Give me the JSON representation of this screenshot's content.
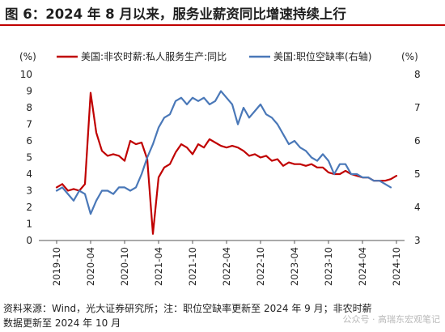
{
  "title": "图 6：2024 年 8 月以来，服务业薪资同比增速持续上行",
  "source_line1": "资料来源：Wind，光大证券研究所；注：职位空缺率更新至 2024 年 9 月；非农时薪",
  "source_line2": "数据更新至 2024 年 10 月",
  "watermark": "公众号 · 高瑞东宏观笔记",
  "colors": {
    "series1": "#c00000",
    "series2": "#4a78b8",
    "title_rule": "#c00000"
  },
  "chart_data": {
    "type": "line",
    "left_unit": "(%)",
    "right_unit": "(%)",
    "left_axis": {
      "min": 0,
      "max": 10,
      "ticks": [
        "0",
        "1",
        "2",
        "3",
        "4",
        "5",
        "6",
        "7",
        "8",
        "9",
        "10"
      ]
    },
    "right_axis": {
      "min": 3,
      "max": 8,
      "ticks": [
        "3",
        "4",
        "5",
        "6",
        "7",
        "8"
      ]
    },
    "x_tick_labels": [
      "2019-10",
      "2020-04",
      "2020-10",
      "2021-04",
      "2021-10",
      "2022-04",
      "2022-10",
      "2023-04",
      "2023-10",
      "2024-04",
      "2024-10"
    ],
    "grid": false,
    "legend_position": "top",
    "series": [
      {
        "name": "美国:非农时薪:私人服务生产:同比",
        "axis": "left",
        "x": [
          "2019-10",
          "2019-11",
          "2019-12",
          "2020-01",
          "2020-02",
          "2020-03",
          "2020-04",
          "2020-05",
          "2020-06",
          "2020-07",
          "2020-08",
          "2020-09",
          "2020-10",
          "2020-11",
          "2020-12",
          "2021-01",
          "2021-02",
          "2021-03",
          "2021-04",
          "2021-05",
          "2021-06",
          "2021-07",
          "2021-08",
          "2021-09",
          "2021-10",
          "2021-11",
          "2021-12",
          "2022-01",
          "2022-02",
          "2022-03",
          "2022-04",
          "2022-05",
          "2022-06",
          "2022-07",
          "2022-08",
          "2022-09",
          "2022-10",
          "2022-11",
          "2022-12",
          "2023-01",
          "2023-02",
          "2023-03",
          "2023-04",
          "2023-05",
          "2023-06",
          "2023-07",
          "2023-08",
          "2023-09",
          "2023-10",
          "2023-11",
          "2023-12",
          "2024-01",
          "2024-02",
          "2024-03",
          "2024-04",
          "2024-05",
          "2024-06",
          "2024-07",
          "2024-08",
          "2024-09",
          "2024-10"
        ],
        "values": [
          3.2,
          3.4,
          3.0,
          3.1,
          3.0,
          3.4,
          8.9,
          6.5,
          5.4,
          5.1,
          5.2,
          5.1,
          4.8,
          6.0,
          5.8,
          5.9,
          4.9,
          0.4,
          3.8,
          4.4,
          4.6,
          5.3,
          5.8,
          5.6,
          5.2,
          5.8,
          5.6,
          6.1,
          5.9,
          5.7,
          5.6,
          5.7,
          5.6,
          5.4,
          5.1,
          5.2,
          5.0,
          5.1,
          4.8,
          4.9,
          4.5,
          4.7,
          4.6,
          4.6,
          4.5,
          4.6,
          4.4,
          4.4,
          4.1,
          4.0,
          4.0,
          4.2,
          4.0,
          3.9,
          3.8,
          3.8,
          3.6,
          3.6,
          3.6,
          3.7,
          3.9
        ]
      },
      {
        "name": "美国:职位空缺率(右轴)",
        "axis": "right",
        "x": [
          "2019-10",
          "2019-11",
          "2019-12",
          "2020-01",
          "2020-02",
          "2020-03",
          "2020-04",
          "2020-05",
          "2020-06",
          "2020-07",
          "2020-08",
          "2020-09",
          "2020-10",
          "2020-11",
          "2020-12",
          "2021-01",
          "2021-02",
          "2021-03",
          "2021-04",
          "2021-05",
          "2021-06",
          "2021-07",
          "2021-08",
          "2021-09",
          "2021-10",
          "2021-11",
          "2021-12",
          "2022-01",
          "2022-02",
          "2022-03",
          "2022-04",
          "2022-05",
          "2022-06",
          "2022-07",
          "2022-08",
          "2022-09",
          "2022-10",
          "2022-11",
          "2022-12",
          "2023-01",
          "2023-02",
          "2023-03",
          "2023-04",
          "2023-05",
          "2023-06",
          "2023-07",
          "2023-08",
          "2023-09",
          "2023-10",
          "2023-11",
          "2023-12",
          "2024-01",
          "2024-02",
          "2024-03",
          "2024-04",
          "2024-05",
          "2024-06",
          "2024-07",
          "2024-08",
          "2024-09"
        ],
        "values": [
          4.5,
          4.6,
          4.4,
          4.2,
          4.5,
          4.4,
          3.8,
          4.2,
          4.5,
          4.5,
          4.4,
          4.6,
          4.6,
          4.5,
          4.6,
          5.0,
          5.5,
          5.9,
          6.4,
          6.7,
          6.8,
          7.2,
          7.3,
          7.1,
          7.3,
          7.2,
          7.3,
          7.1,
          7.2,
          7.5,
          7.3,
          7.1,
          6.5,
          7.0,
          6.7,
          6.9,
          7.1,
          6.8,
          6.7,
          6.5,
          6.2,
          5.9,
          6.0,
          5.8,
          5.7,
          5.5,
          5.4,
          5.6,
          5.4,
          5.0,
          5.3,
          5.3,
          5.0,
          5.0,
          4.9,
          4.9,
          4.8,
          4.8,
          4.7,
          4.6
        ]
      }
    ]
  }
}
